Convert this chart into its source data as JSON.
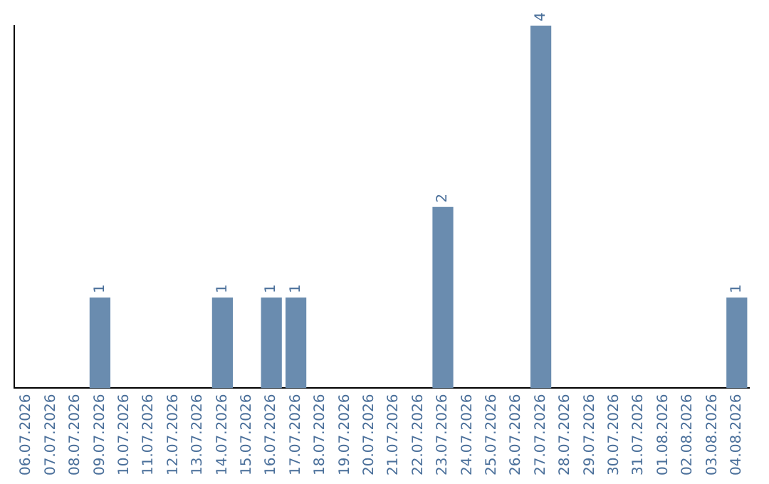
{
  "chart_data": {
    "type": "bar",
    "categories": [
      "06.07.2026",
      "07.07.2026",
      "08.07.2026",
      "09.07.2026",
      "10.07.2026",
      "11.07.2026",
      "12.07.2026",
      "13.07.2026",
      "14.07.2026",
      "15.07.2026",
      "16.07.2026",
      "17.07.2026",
      "18.07.2026",
      "19.07.2026",
      "20.07.2026",
      "21.07.2026",
      "22.07.2026",
      "23.07.2026",
      "24.07.2026",
      "25.07.2026",
      "26.07.2026",
      "27.07.2026",
      "28.07.2026",
      "29.07.2026",
      "30.07.2026",
      "31.07.2026",
      "01.08.2026",
      "02.08.2026",
      "03.08.2026",
      "04.08.2026"
    ],
    "values": [
      0,
      0,
      0,
      1,
      0,
      0,
      0,
      0,
      1,
      0,
      1,
      1,
      0,
      0,
      0,
      0,
      0,
      2,
      0,
      0,
      0,
      4,
      0,
      0,
      0,
      0,
      0,
      0,
      0,
      1
    ],
    "value_labels": [
      null,
      null,
      null,
      "1",
      null,
      null,
      null,
      null,
      "1",
      null,
      "1",
      "1",
      null,
      null,
      null,
      null,
      null,
      "2",
      null,
      null,
      null,
      "4",
      null,
      null,
      null,
      null,
      null,
      null,
      null,
      "1"
    ],
    "color": "#6a8caf",
    "ylim": [
      0,
      4
    ],
    "tick_labels": "x",
    "grid": false,
    "legend": false
  }
}
